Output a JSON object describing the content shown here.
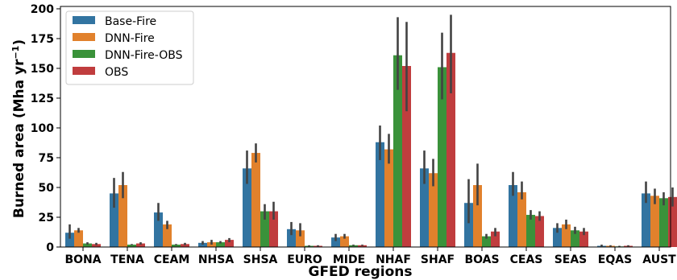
{
  "chart_data": {
    "type": "bar",
    "xlabel": "GFED regions",
    "ylabel_main": "Burned area (Mha yr",
    "ylabel_sup": "−1",
    "ylabel_close": ")",
    "ylim": [
      0,
      202
    ],
    "yticks": [
      0,
      25,
      50,
      75,
      100,
      125,
      150,
      175,
      200
    ],
    "grid": false,
    "legend_position": "top-left",
    "categories": [
      "BONA",
      "TENA",
      "CEAM",
      "NHSA",
      "SHSA",
      "EURO",
      "MIDE",
      "NHAF",
      "SHAF",
      "BOAS",
      "CEAS",
      "SEAS",
      "EQAS",
      "AUST"
    ],
    "series": [
      {
        "name": "Base-Fire",
        "color": "#3274a1",
        "values": [
          12,
          45,
          29,
          3.5,
          66,
          15,
          8,
          88,
          66,
          37,
          52,
          16,
          1,
          45
        ],
        "err_low": [
          7,
          33,
          22,
          2,
          53,
          10,
          5,
          73,
          53,
          20,
          43,
          12,
          0.5,
          37
        ],
        "err_high": [
          19,
          58,
          37,
          5,
          81,
          21,
          11,
          102,
          81,
          57,
          63,
          20,
          2,
          55
        ]
      },
      {
        "name": "DNN-Fire",
        "color": "#e1812c",
        "values": [
          14,
          52,
          19,
          4,
          79,
          14,
          9,
          82,
          62,
          52,
          46,
          19,
          1,
          43
        ],
        "err_low": [
          12,
          41,
          15,
          2,
          71,
          9,
          7,
          70,
          51,
          35,
          40,
          15,
          0.5,
          36
        ],
        "err_high": [
          16,
          63,
          22,
          6,
          87,
          20,
          11,
          95,
          74,
          70,
          55,
          23,
          1.5,
          49
        ]
      },
      {
        "name": "DNN-Fire-OBS",
        "color": "#3a923a",
        "values": [
          3,
          2,
          2,
          4,
          30,
          1,
          1.5,
          161,
          151,
          9,
          27,
          14,
          0.5,
          41
        ],
        "err_low": [
          2,
          1.5,
          1.5,
          3,
          23,
          0.5,
          1,
          132,
          124,
          7,
          23,
          11,
          0,
          35
        ],
        "err_high": [
          4,
          2.5,
          2.5,
          5,
          36,
          1.5,
          2,
          193,
          180,
          11,
          31,
          17,
          1,
          46
        ]
      },
      {
        "name": "OBS",
        "color": "#c03d3e",
        "values": [
          2.5,
          3,
          2.5,
          6,
          30,
          1,
          1.5,
          152,
          163,
          13,
          26,
          13,
          1,
          42
        ],
        "err_low": [
          1.5,
          2,
          1.5,
          4,
          23,
          0.5,
          1,
          114,
          129,
          9,
          22,
          10,
          0.5,
          34
        ],
        "err_high": [
          3.5,
          4,
          3.5,
          7.5,
          38,
          1.5,
          2,
          189,
          195,
          16,
          30,
          16,
          1.5,
          50
        ]
      }
    ]
  }
}
